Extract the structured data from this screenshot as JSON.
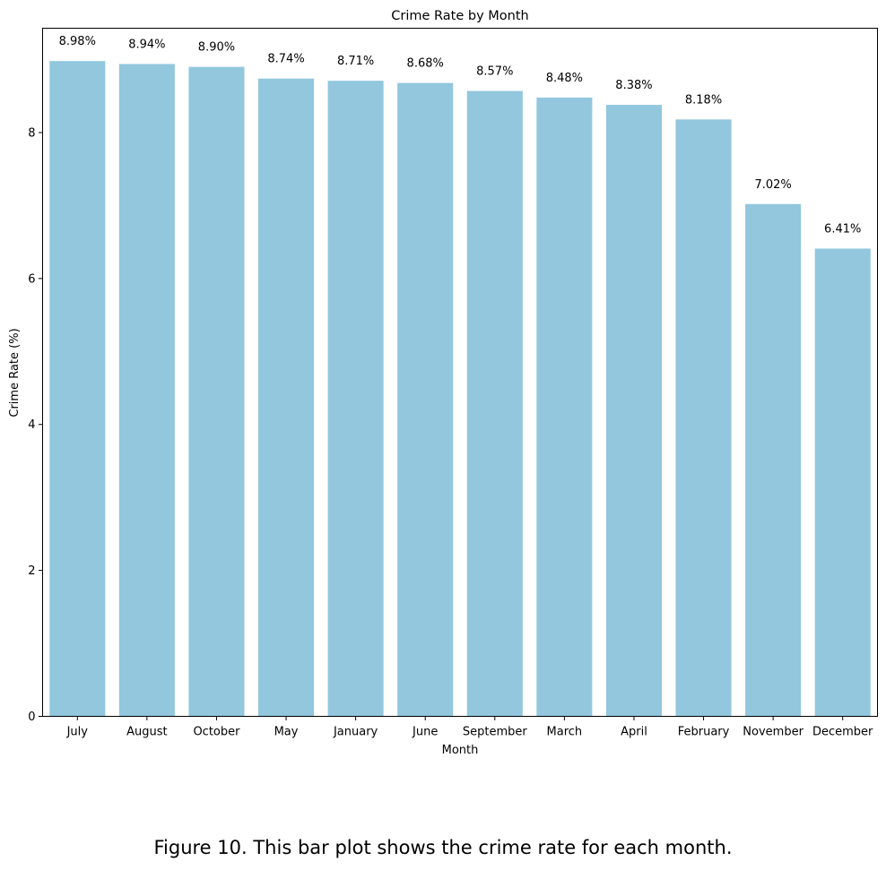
{
  "chart_data": {
    "type": "bar",
    "title": "Crime Rate by Month",
    "xlabel": "Month",
    "ylabel": "Crime Rate (%)",
    "categories": [
      "July",
      "August",
      "October",
      "May",
      "January",
      "June",
      "September",
      "March",
      "April",
      "February",
      "November",
      "December"
    ],
    "values": [
      8.98,
      8.94,
      8.9,
      8.74,
      8.71,
      8.68,
      8.57,
      8.48,
      8.38,
      8.18,
      7.02,
      6.41
    ],
    "data_labels": [
      "8.98%",
      "8.94%",
      "8.90%",
      "8.74%",
      "8.71%",
      "8.68%",
      "8.57%",
      "8.48%",
      "8.38%",
      "8.18%",
      "7.02%",
      "6.41%"
    ],
    "yticks": [
      0,
      2,
      4,
      6,
      8
    ],
    "ylim": [
      0,
      9.43
    ],
    "grid": false,
    "bar_color": "#92c7de"
  },
  "caption": "Figure 10. This bar plot shows the crime rate for each month."
}
